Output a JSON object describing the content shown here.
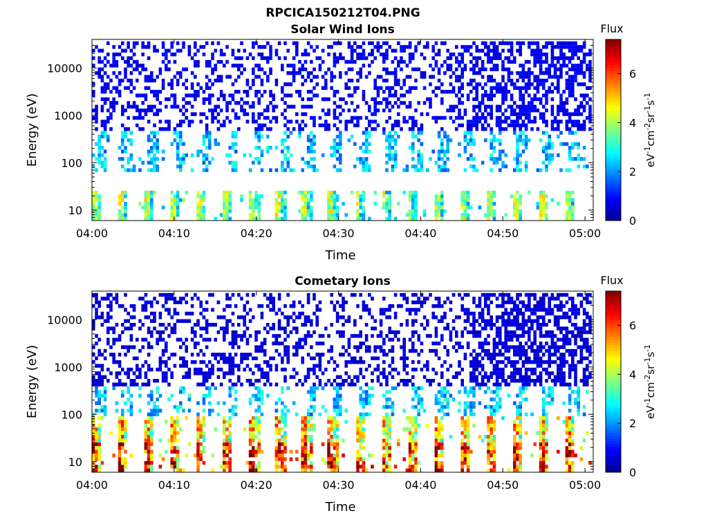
{
  "figure_title": "RPCICA150212T04.PNG",
  "colormap": [
    "#00008f",
    "#0000ff",
    "#0080ff",
    "#00ffff",
    "#80ff80",
    "#ffff00",
    "#ff8000",
    "#ff0000",
    "#800000"
  ],
  "chart_data": [
    {
      "type": "heatmap",
      "title": "Solar Wind Ions",
      "xlabel": "Time",
      "ylabel": "Energy (eV)",
      "x_ticks": [
        "04:00",
        "04:10",
        "04:20",
        "04:30",
        "04:40",
        "04:50",
        "05:00"
      ],
      "x_tick_minutes": [
        0,
        10,
        20,
        30,
        40,
        50,
        60
      ],
      "xlim_minutes": [
        0,
        61
      ],
      "y_scale": "log",
      "y_ticks": [
        "10",
        "100",
        "1000",
        "10000"
      ],
      "y_tick_values": [
        10,
        100,
        1000,
        10000
      ],
      "ylim": [
        6,
        40000
      ],
      "colorbar": {
        "title": "Flux",
        "label": "eV-1cm-2sr-1s-1",
        "ticks": [
          "0",
          "2",
          "4",
          "6"
        ],
        "range": [
          0,
          7.4
        ]
      },
      "sweep_period_min": 3.2,
      "bands": [
        {
          "emin": 6,
          "emax": 28,
          "value": 2.9
        },
        {
          "emin": 60,
          "emax": 450,
          "value": 2.3
        },
        {
          "emin": 450,
          "emax": 40000,
          "value": 0.8
        }
      ]
    },
    {
      "type": "heatmap",
      "title": "Cometary Ions",
      "xlabel": "Time",
      "ylabel": "Energy (eV)",
      "x_ticks": [
        "04:00",
        "04:10",
        "04:20",
        "04:30",
        "04:40",
        "04:50",
        "05:00"
      ],
      "x_tick_minutes": [
        0,
        10,
        20,
        30,
        40,
        50,
        60
      ],
      "xlim_minutes": [
        0,
        61
      ],
      "y_scale": "log",
      "y_ticks": [
        "10",
        "100",
        "1000",
        "10000"
      ],
      "y_tick_values": [
        10,
        100,
        1000,
        10000
      ],
      "ylim": [
        6,
        40000
      ],
      "colorbar": {
        "title": "Flux",
        "label": "eV-1cm-2sr-1s-1",
        "ticks": [
          "0",
          "2",
          "4",
          "6"
        ],
        "range": [
          0,
          7.4
        ]
      },
      "sweep_period_min": 3.2,
      "bands": [
        {
          "emin": 6,
          "emax": 28,
          "value": 5.2
        },
        {
          "emin": 28,
          "emax": 90,
          "value": 3.9
        },
        {
          "emin": 90,
          "emax": 400,
          "value": 2.4
        },
        {
          "emin": 400,
          "emax": 40000,
          "value": 0.6
        }
      ]
    }
  ]
}
